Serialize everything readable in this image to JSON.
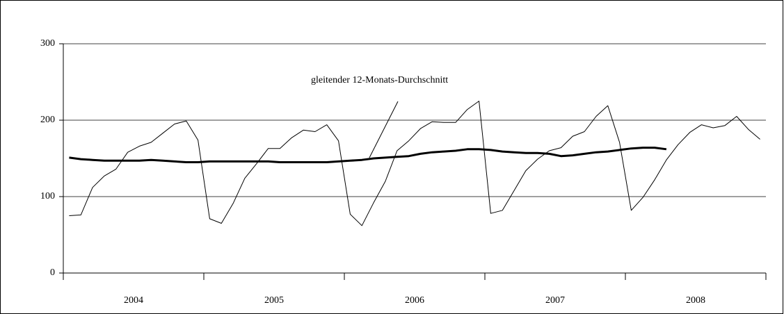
{
  "chart_data": {
    "type": "line",
    "annotation": "gleitender 12-Monats-Durchschnitt",
    "x": [
      "2004",
      "2004",
      "2004",
      "2004",
      "2004",
      "2004",
      "2004",
      "2004",
      "2004",
      "2004",
      "2004",
      "2004",
      "2005",
      "2005",
      "2005",
      "2005",
      "2005",
      "2005",
      "2005",
      "2005",
      "2005",
      "2005",
      "2005",
      "2005",
      "2006",
      "2006",
      "2006",
      "2006",
      "2006",
      "2006",
      "2006",
      "2006",
      "2006",
      "2006",
      "2006",
      "2006",
      "2007",
      "2007",
      "2007",
      "2007",
      "2007",
      "2007",
      "2007",
      "2007",
      "2007",
      "2007",
      "2007",
      "2007",
      "2008",
      "2008",
      "2008",
      "2008",
      "2008",
      "2008",
      "2008",
      "2008",
      "2008",
      "2008",
      "2008",
      "2008"
    ],
    "series": [
      {
        "color": "#000000",
        "width": 1,
        "values": [
          75,
          76,
          112,
          127,
          136,
          158,
          166,
          171,
          183,
          195,
          199,
          174,
          71,
          65,
          91,
          124,
          143,
          163,
          163,
          177,
          187,
          185,
          194,
          173,
          77,
          62,
          92,
          120,
          160,
          173,
          189,
          198,
          197,
          197,
          214,
          225,
          78,
          82,
          108,
          134,
          149,
          160,
          164,
          179,
          185,
          205,
          219,
          171,
          82,
          99,
          122,
          148,
          168,
          184,
          194,
          190,
          193,
          205,
          188,
          175
        ]
      },
      {
        "color": "#000000",
        "width": 3,
        "values": [
          151,
          149,
          148,
          147,
          147,
          147,
          147,
          148,
          147,
          146,
          145,
          145,
          146,
          146,
          146,
          146,
          146,
          146,
          145,
          145,
          145,
          145,
          145,
          146,
          147,
          148,
          150,
          151,
          152,
          153,
          156,
          158,
          159,
          160,
          162,
          162,
          161,
          159,
          158,
          157,
          157,
          156,
          153,
          154,
          156,
          158,
          159,
          161,
          163,
          164,
          164,
          162,
          null,
          null,
          null,
          null,
          null,
          null,
          null,
          null
        ]
      }
    ],
    "ylim": [
      0,
      300
    ],
    "yticks": [
      0,
      100,
      200,
      300
    ],
    "grid": true
  }
}
